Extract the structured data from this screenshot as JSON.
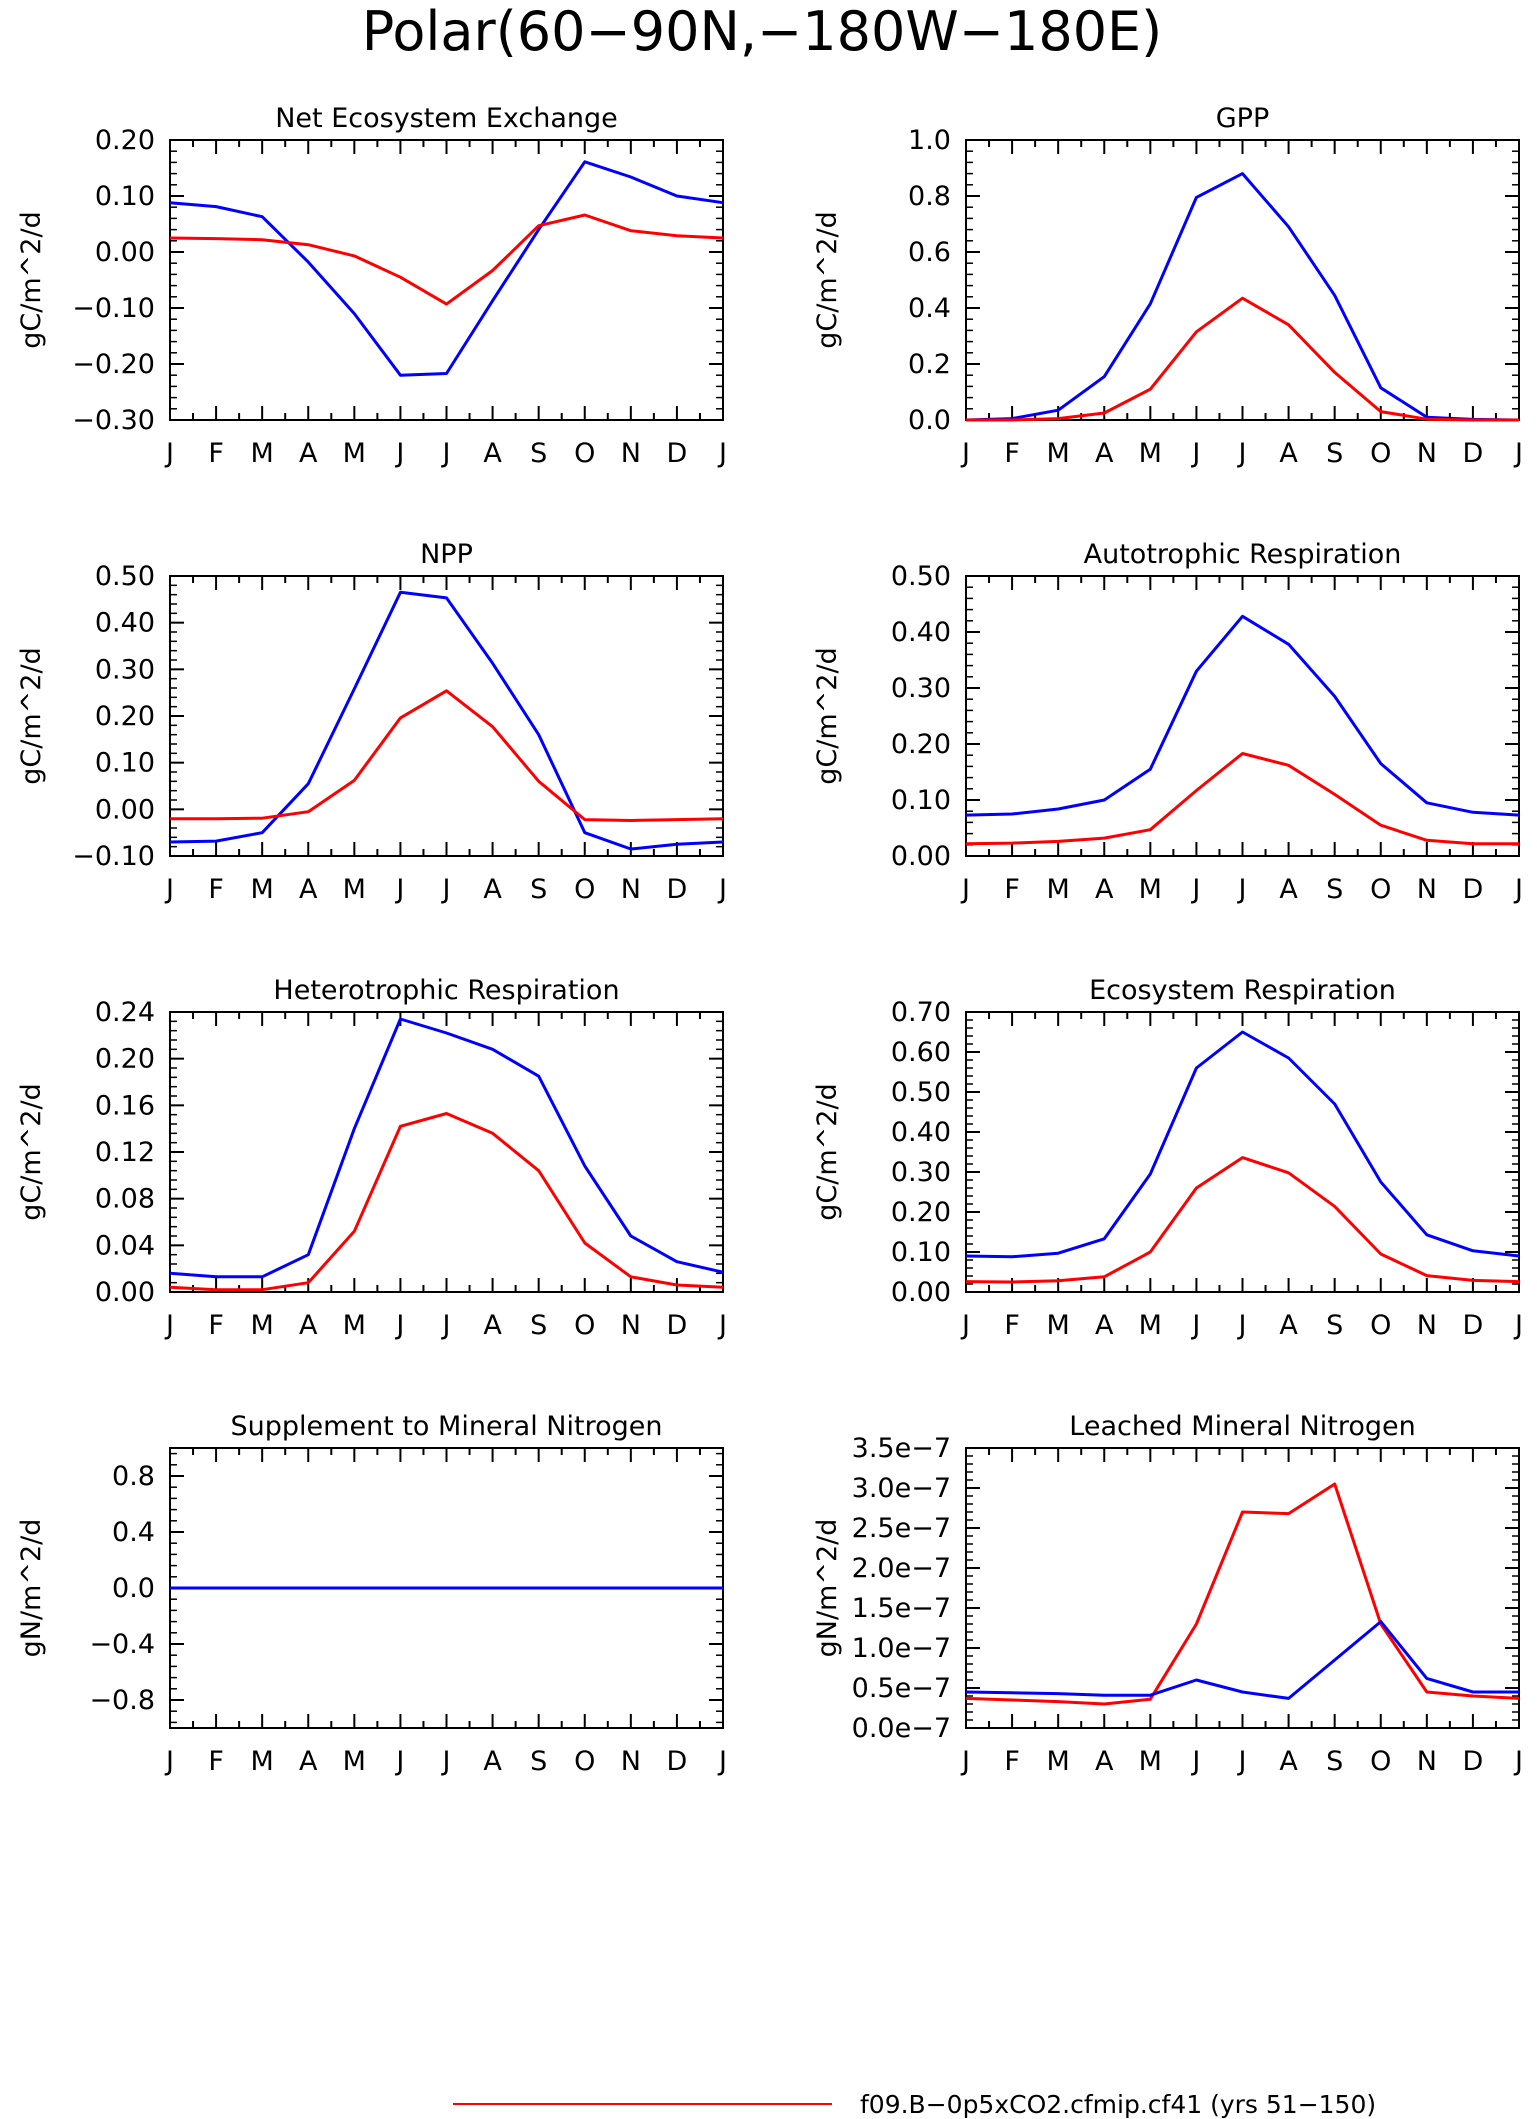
{
  "figure": {
    "title": "Polar(60−90N,−180W−180E)",
    "legend": [
      {
        "label": "f09.B−0p5xCO2.cfmip.cf41 (yrs 51−150)",
        "color": "#ff0000"
      }
    ]
  },
  "colors": {
    "red": "#ff0000",
    "blue": "#0000ff",
    "axis": "#000000"
  },
  "chart_data": [
    {
      "type": "line",
      "title": "Net Ecosystem Exchange",
      "ylabel": "gC/m^2/d",
      "categories": [
        "J",
        "F",
        "M",
        "A",
        "M",
        "J",
        "J",
        "A",
        "S",
        "O",
        "N",
        "D",
        "J"
      ],
      "ylim": [
        -0.3,
        0.2
      ],
      "yticks": [
        -0.3,
        -0.2,
        -0.1,
        0.0,
        0.1,
        0.2
      ],
      "ytick_labels": [
        "−0.30",
        "−0.20",
        "−0.10",
        "0.00",
        "0.10",
        "0.20"
      ],
      "series": [
        {
          "color": "#0000ff",
          "values": [
            0.088,
            0.081,
            0.063,
            -0.018,
            -0.11,
            -0.22,
            -0.217,
            -0.087,
            0.04,
            0.161,
            0.134,
            0.1,
            0.088
          ]
        },
        {
          "color": "#ff0000",
          "values": [
            0.025,
            0.024,
            0.022,
            0.013,
            -0.007,
            -0.045,
            -0.093,
            -0.033,
            0.047,
            0.066,
            0.038,
            0.029,
            0.025
          ]
        }
      ]
    },
    {
      "type": "line",
      "title": "GPP",
      "ylabel": "gC/m^2/d",
      "categories": [
        "J",
        "F",
        "M",
        "A",
        "M",
        "J",
        "J",
        "A",
        "S",
        "O",
        "N",
        "D",
        "J"
      ],
      "ylim": [
        0.0,
        1.0
      ],
      "yticks": [
        0.0,
        0.2,
        0.4,
        0.6,
        0.8,
        1.0
      ],
      "ytick_labels": [
        "0.0",
        "0.2",
        "0.4",
        "0.6",
        "0.8",
        "1.0"
      ],
      "series": [
        {
          "color": "#0000ff",
          "values": [
            0.0,
            0.005,
            0.035,
            0.155,
            0.415,
            0.795,
            0.88,
            0.69,
            0.445,
            0.115,
            0.01,
            0.002,
            0.0
          ]
        },
        {
          "color": "#ff0000",
          "values": [
            0.0,
            0.0,
            0.005,
            0.025,
            0.11,
            0.315,
            0.435,
            0.34,
            0.17,
            0.03,
            0.003,
            0.0,
            0.0
          ]
        }
      ]
    },
    {
      "type": "line",
      "title": "NPP",
      "ylabel": "gC/m^2/d",
      "categories": [
        "J",
        "F",
        "M",
        "A",
        "M",
        "J",
        "J",
        "A",
        "S",
        "O",
        "N",
        "D",
        "J"
      ],
      "ylim": [
        -0.1,
        0.5
      ],
      "yticks": [
        -0.1,
        0.0,
        0.1,
        0.2,
        0.3,
        0.4,
        0.5
      ],
      "ytick_labels": [
        "−0.10",
        "0.00",
        "0.10",
        "0.20",
        "0.30",
        "0.40",
        "0.50"
      ],
      "series": [
        {
          "color": "#0000ff",
          "values": [
            -0.07,
            -0.068,
            -0.05,
            0.055,
            0.258,
            0.465,
            0.453,
            0.313,
            0.16,
            -0.05,
            -0.085,
            -0.075,
            -0.07
          ]
        },
        {
          "color": "#ff0000",
          "values": [
            -0.02,
            -0.02,
            -0.019,
            -0.005,
            0.062,
            0.196,
            0.254,
            0.177,
            0.06,
            -0.022,
            -0.024,
            -0.022,
            -0.02
          ]
        }
      ]
    },
    {
      "type": "line",
      "title": "Autotrophic Respiration",
      "ylabel": "gC/m^2/d",
      "categories": [
        "J",
        "F",
        "M",
        "A",
        "M",
        "J",
        "J",
        "A",
        "S",
        "O",
        "N",
        "D",
        "J"
      ],
      "ylim": [
        0.0,
        0.5
      ],
      "yticks": [
        0.0,
        0.1,
        0.2,
        0.3,
        0.4,
        0.5
      ],
      "ytick_labels": [
        "0.00",
        "0.10",
        "0.20",
        "0.30",
        "0.40",
        "0.50"
      ],
      "series": [
        {
          "color": "#0000ff",
          "values": [
            0.073,
            0.075,
            0.084,
            0.1,
            0.155,
            0.33,
            0.428,
            0.378,
            0.285,
            0.165,
            0.095,
            0.078,
            0.073
          ]
        },
        {
          "color": "#ff0000",
          "values": [
            0.022,
            0.023,
            0.026,
            0.032,
            0.047,
            0.117,
            0.183,
            0.162,
            0.11,
            0.055,
            0.028,
            0.022,
            0.022
          ]
        }
      ]
    },
    {
      "type": "line",
      "title": "Heterotrophic Respiration",
      "ylabel": "gC/m^2/d",
      "categories": [
        "J",
        "F",
        "M",
        "A",
        "M",
        "J",
        "J",
        "A",
        "S",
        "O",
        "N",
        "D",
        "J"
      ],
      "ylim": [
        0.0,
        0.24
      ],
      "yticks": [
        0.0,
        0.04,
        0.08,
        0.12,
        0.16,
        0.2,
        0.24
      ],
      "ytick_labels": [
        "0.00",
        "0.04",
        "0.08",
        "0.12",
        "0.16",
        "0.20",
        "0.24"
      ],
      "series": [
        {
          "color": "#0000ff",
          "values": [
            0.016,
            0.013,
            0.013,
            0.032,
            0.14,
            0.234,
            0.222,
            0.208,
            0.185,
            0.108,
            0.048,
            0.026,
            0.017
          ]
        },
        {
          "color": "#ff0000",
          "values": [
            0.004,
            0.002,
            0.002,
            0.008,
            0.052,
            0.142,
            0.153,
            0.136,
            0.104,
            0.042,
            0.013,
            0.006,
            0.004
          ]
        }
      ]
    },
    {
      "type": "line",
      "title": "Ecosystem Respiration",
      "ylabel": "gC/m^2/d",
      "categories": [
        "J",
        "F",
        "M",
        "A",
        "M",
        "J",
        "J",
        "A",
        "S",
        "O",
        "N",
        "D",
        "J"
      ],
      "ylim": [
        0.0,
        0.7
      ],
      "yticks": [
        0.0,
        0.1,
        0.2,
        0.3,
        0.4,
        0.5,
        0.6,
        0.7
      ],
      "ytick_labels": [
        "0.00",
        "0.10",
        "0.20",
        "0.30",
        "0.40",
        "0.50",
        "0.60",
        "0.70"
      ],
      "series": [
        {
          "color": "#0000ff",
          "values": [
            0.09,
            0.088,
            0.097,
            0.133,
            0.295,
            0.56,
            0.65,
            0.585,
            0.47,
            0.275,
            0.143,
            0.103,
            0.09
          ]
        },
        {
          "color": "#ff0000",
          "values": [
            0.026,
            0.025,
            0.028,
            0.038,
            0.1,
            0.26,
            0.336,
            0.298,
            0.214,
            0.095,
            0.041,
            0.029,
            0.026
          ]
        }
      ]
    },
    {
      "type": "line",
      "title": "Supplement to Mineral Nitrogen",
      "ylabel": "gN/m^2/d",
      "categories": [
        "J",
        "F",
        "M",
        "A",
        "M",
        "J",
        "J",
        "A",
        "S",
        "O",
        "N",
        "D",
        "J"
      ],
      "ylim": [
        -1.0,
        1.0
      ],
      "yticks": [
        -0.8,
        -0.4,
        0.0,
        0.4,
        0.8
      ],
      "ytick_labels": [
        "−0.8",
        "−0.4",
        "0.0",
        "0.4",
        "0.8"
      ],
      "series": [
        {
          "color": "#ff0000",
          "values": [
            0,
            0,
            0,
            0,
            0,
            0,
            0,
            0,
            0,
            0,
            0,
            0,
            0
          ]
        },
        {
          "color": "#0000ff",
          "values": [
            0,
            0,
            0,
            0,
            0,
            0,
            0,
            0,
            0,
            0,
            0,
            0,
            0
          ]
        }
      ]
    },
    {
      "type": "line",
      "title": "Leached Mineral Nitrogen",
      "ylabel": "gN/m^2/d",
      "categories": [
        "J",
        "F",
        "M",
        "A",
        "M",
        "J",
        "J",
        "A",
        "S",
        "O",
        "N",
        "D",
        "J"
      ],
      "ylim": [
        0.0,
        3.5e-07
      ],
      "yticks": [
        0.0,
        5e-08,
        1e-07,
        1.5e-07,
        2e-07,
        2.5e-07,
        3e-07,
        3.5e-07
      ],
      "ytick_labels": [
        "0.0e−7",
        "0.5e−7",
        "1.0e−7",
        "1.5e−7",
        "2.0e−7",
        "2.5e−7",
        "3.0e−7",
        "3.5e−7"
      ],
      "series": [
        {
          "color": "#ff0000",
          "values": [
            3.7e-08,
            3.5e-08,
            3.3e-08,
            3e-08,
            3.6e-08,
            1.3e-07,
            2.7e-07,
            2.68e-07,
            3.05e-07,
            1.3e-07,
            4.5e-08,
            4e-08,
            3.7e-08
          ]
        },
        {
          "color": "#0000ff",
          "values": [
            4.5e-08,
            4.4e-08,
            4.3e-08,
            4.1e-08,
            4.1e-08,
            6e-08,
            4.5e-08,
            3.7e-08,
            8.5e-08,
            1.33e-07,
            6.2e-08,
            4.5e-08,
            4.5e-08
          ]
        }
      ]
    }
  ]
}
